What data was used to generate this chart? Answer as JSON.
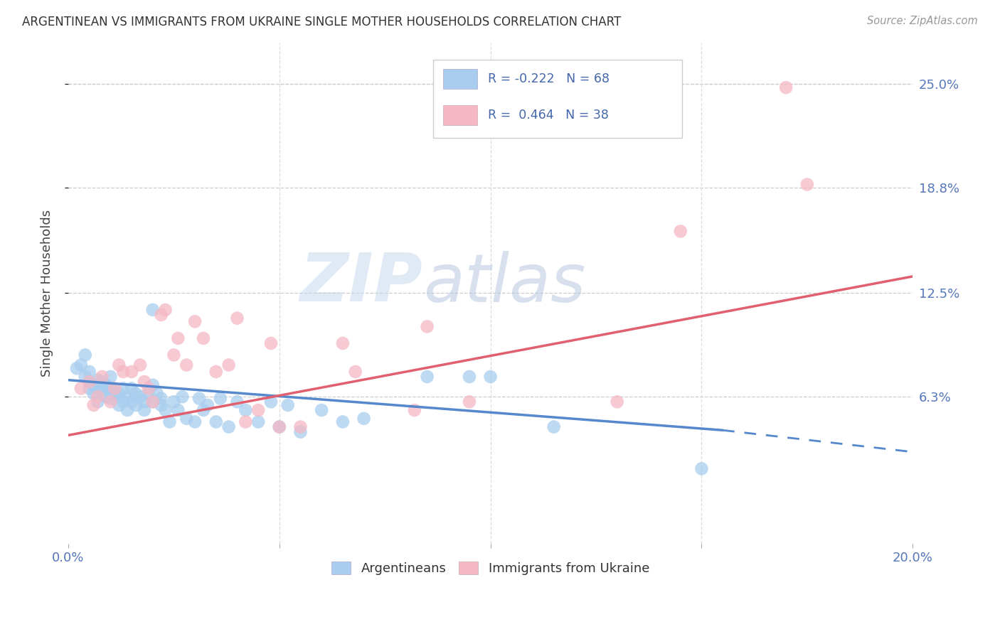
{
  "title": "ARGENTINEAN VS IMMIGRANTS FROM UKRAINE SINGLE MOTHER HOUSEHOLDS CORRELATION CHART",
  "source": "Source: ZipAtlas.com",
  "ylabel": "Single Mother Households",
  "yticks_labels": [
    "25.0%",
    "18.8%",
    "12.5%",
    "6.3%"
  ],
  "ytick_vals": [
    0.25,
    0.188,
    0.125,
    0.063
  ],
  "xlim": [
    0.0,
    0.2
  ],
  "ylim": [
    -0.025,
    0.275
  ],
  "xtick_vals": [
    0.0,
    0.05,
    0.1,
    0.15,
    0.2
  ],
  "xtick_labels": [
    "0.0%",
    "",
    "",
    "",
    "20.0%"
  ],
  "legend1_label": "R = -0.222   N = 68",
  "legend2_label": "R =  0.464   N = 38",
  "legend_bottom1": "Argentineans",
  "legend_bottom2": "Immigrants from Ukraine",
  "blue_color": "#A8CDEE",
  "pink_color": "#F5B8C4",
  "blue_line_color": "#5588CC",
  "pink_line_color": "#E06070",
  "blue_line": {
    "x0": 0.0,
    "x1": 0.155,
    "y0": 0.073,
    "y1": 0.043,
    "x1_dash": 0.2,
    "y1_dash": 0.03
  },
  "pink_line": {
    "x0": 0.0,
    "x1": 0.2,
    "y0": 0.04,
    "y1": 0.135
  },
  "watermark_zip": "ZIP",
  "watermark_atlas": "atlas",
  "blue_scatter": [
    [
      0.002,
      0.08
    ],
    [
      0.003,
      0.082
    ],
    [
      0.004,
      0.075
    ],
    [
      0.004,
      0.088
    ],
    [
      0.005,
      0.072
    ],
    [
      0.005,
      0.068
    ],
    [
      0.005,
      0.078
    ],
    [
      0.006,
      0.07
    ],
    [
      0.006,
      0.065
    ],
    [
      0.007,
      0.068
    ],
    [
      0.007,
      0.073
    ],
    [
      0.007,
      0.06
    ],
    [
      0.008,
      0.067
    ],
    [
      0.008,
      0.072
    ],
    [
      0.009,
      0.063
    ],
    [
      0.009,
      0.07
    ],
    [
      0.01,
      0.068
    ],
    [
      0.01,
      0.062
    ],
    [
      0.01,
      0.075
    ],
    [
      0.011,
      0.065
    ],
    [
      0.012,
      0.058
    ],
    [
      0.012,
      0.065
    ],
    [
      0.013,
      0.06
    ],
    [
      0.013,
      0.068
    ],
    [
      0.014,
      0.055
    ],
    [
      0.014,
      0.063
    ],
    [
      0.015,
      0.06
    ],
    [
      0.015,
      0.068
    ],
    [
      0.016,
      0.058
    ],
    [
      0.016,
      0.065
    ],
    [
      0.017,
      0.063
    ],
    [
      0.018,
      0.055
    ],
    [
      0.018,
      0.06
    ],
    [
      0.019,
      0.065
    ],
    [
      0.02,
      0.07
    ],
    [
      0.02,
      0.06
    ],
    [
      0.021,
      0.065
    ],
    [
      0.022,
      0.058
    ],
    [
      0.022,
      0.062
    ],
    [
      0.023,
      0.055
    ],
    [
      0.024,
      0.048
    ],
    [
      0.025,
      0.06
    ],
    [
      0.026,
      0.055
    ],
    [
      0.027,
      0.063
    ],
    [
      0.028,
      0.05
    ],
    [
      0.03,
      0.048
    ],
    [
      0.031,
      0.062
    ],
    [
      0.032,
      0.055
    ],
    [
      0.033,
      0.058
    ],
    [
      0.035,
      0.048
    ],
    [
      0.036,
      0.062
    ],
    [
      0.038,
      0.045
    ],
    [
      0.04,
      0.06
    ],
    [
      0.042,
      0.055
    ],
    [
      0.045,
      0.048
    ],
    [
      0.048,
      0.06
    ],
    [
      0.05,
      0.045
    ],
    [
      0.052,
      0.058
    ],
    [
      0.055,
      0.042
    ],
    [
      0.06,
      0.055
    ],
    [
      0.065,
      0.048
    ],
    [
      0.07,
      0.05
    ],
    [
      0.085,
      0.075
    ],
    [
      0.095,
      0.075
    ],
    [
      0.1,
      0.075
    ],
    [
      0.115,
      0.045
    ],
    [
      0.02,
      0.115
    ],
    [
      0.15,
      0.02
    ]
  ],
  "pink_scatter": [
    [
      0.003,
      0.068
    ],
    [
      0.005,
      0.072
    ],
    [
      0.006,
      0.058
    ],
    [
      0.007,
      0.063
    ],
    [
      0.008,
      0.075
    ],
    [
      0.01,
      0.06
    ],
    [
      0.011,
      0.068
    ],
    [
      0.012,
      0.082
    ],
    [
      0.013,
      0.078
    ],
    [
      0.015,
      0.078
    ],
    [
      0.017,
      0.082
    ],
    [
      0.018,
      0.072
    ],
    [
      0.019,
      0.068
    ],
    [
      0.02,
      0.06
    ],
    [
      0.022,
      0.112
    ],
    [
      0.023,
      0.115
    ],
    [
      0.025,
      0.088
    ],
    [
      0.026,
      0.098
    ],
    [
      0.028,
      0.082
    ],
    [
      0.03,
      0.108
    ],
    [
      0.032,
      0.098
    ],
    [
      0.035,
      0.078
    ],
    [
      0.038,
      0.082
    ],
    [
      0.04,
      0.11
    ],
    [
      0.042,
      0.048
    ],
    [
      0.045,
      0.055
    ],
    [
      0.048,
      0.095
    ],
    [
      0.05,
      0.045
    ],
    [
      0.055,
      0.045
    ],
    [
      0.065,
      0.095
    ],
    [
      0.068,
      0.078
    ],
    [
      0.082,
      0.055
    ],
    [
      0.085,
      0.105
    ],
    [
      0.095,
      0.06
    ],
    [
      0.13,
      0.06
    ],
    [
      0.145,
      0.162
    ],
    [
      0.17,
      0.248
    ],
    [
      0.175,
      0.19
    ]
  ]
}
